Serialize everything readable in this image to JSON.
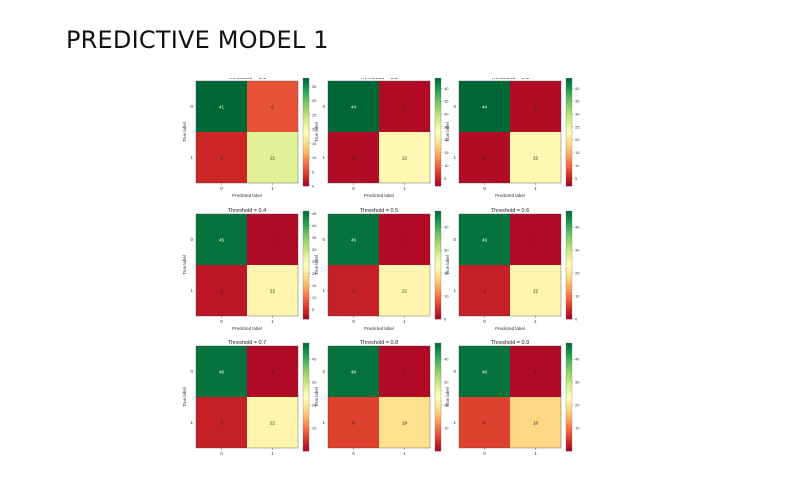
{
  "page": {
    "title": "PREDICTIVE MODEL 1"
  },
  "chart_data": [
    {
      "type": "heatmap",
      "title": "Threshold = 0.1",
      "xlabel": "Predicted label",
      "ylabel": "True label",
      "x_ticks": [
        "0",
        "1"
      ],
      "y_ticks": [
        "0",
        "1"
      ],
      "values": [
        [
          41,
          6
        ],
        [
          3,
          22
        ]
      ],
      "colorbar_ticks": [
        0,
        5,
        10,
        15,
        20,
        25,
        30,
        35
      ],
      "colorbar_range": [
        0,
        38
      ],
      "colormap": "RdYlGn"
    },
    {
      "type": "heatmap",
      "title": "Threshold = 0.2",
      "xlabel": "Predicted label",
      "ylabel": "True label",
      "x_ticks": [
        "0",
        "1"
      ],
      "y_ticks": [
        "0",
        "1"
      ],
      "values": [
        [
          44,
          3
        ],
        [
          3,
          22
        ]
      ],
      "colorbar_ticks": [
        5,
        10,
        15,
        20,
        25,
        30,
        35,
        40
      ],
      "colorbar_range": [
        2,
        44
      ],
      "colormap": "RdYlGn"
    },
    {
      "type": "heatmap",
      "title": "Threshold = 0.3",
      "xlabel": "Predicted label",
      "ylabel": "True label",
      "x_ticks": [
        "0",
        "1"
      ],
      "y_ticks": [
        "0",
        "1"
      ],
      "values": [
        [
          44,
          3
        ],
        [
          3,
          22
        ]
      ],
      "colorbar_ticks": [
        5,
        10,
        15,
        20,
        25,
        30,
        35,
        40
      ],
      "colorbar_range": [
        2,
        44
      ],
      "colormap": "RdYlGn"
    },
    {
      "type": "heatmap",
      "title": "Threshold = 0.4",
      "xlabel": "Predicted label",
      "ylabel": "True label",
      "x_ticks": [
        "0",
        "1"
      ],
      "y_ticks": [
        "0",
        "1"
      ],
      "values": [
        [
          45,
          2
        ],
        [
          3,
          22
        ]
      ],
      "colorbar_ticks": [
        5,
        10,
        15,
        20,
        25,
        30,
        35,
        40,
        45
      ],
      "colorbar_range": [
        1,
        46
      ],
      "colormap": "RdYlGn"
    },
    {
      "type": "heatmap",
      "title": "Threshold = 0.5",
      "xlabel": "Predicted label",
      "ylabel": "True label",
      "x_ticks": [
        "0",
        "1"
      ],
      "y_ticks": [
        "0",
        "1"
      ],
      "values": [
        [
          46,
          1
        ],
        [
          3,
          22
        ]
      ],
      "colorbar_ticks": [
        0,
        10,
        20,
        30,
        40
      ],
      "colorbar_range": [
        0,
        47
      ],
      "colormap": "RdYlGn"
    },
    {
      "type": "heatmap",
      "title": "Threshold = 0.6",
      "xlabel": "Predicted label",
      "ylabel": "True label",
      "x_ticks": [
        "0",
        "1"
      ],
      "y_ticks": [
        "0",
        "1"
      ],
      "values": [
        [
          46,
          1
        ],
        [
          3,
          22
        ]
      ],
      "colorbar_ticks": [
        0,
        10,
        20,
        30,
        40
      ],
      "colorbar_range": [
        0,
        47
      ],
      "colormap": "RdYlGn"
    },
    {
      "type": "heatmap",
      "title": "Threshold = 0.7",
      "xlabel": "",
      "ylabel": "True label",
      "x_ticks": [
        "0",
        "1"
      ],
      "y_ticks": [
        "0",
        "1"
      ],
      "values": [
        [
          46,
          1
        ],
        [
          3,
          22
        ]
      ],
      "colorbar_ticks": [
        10,
        20,
        30,
        40
      ],
      "colorbar_range": [
        0,
        47
      ],
      "colormap": "RdYlGn"
    },
    {
      "type": "heatmap",
      "title": "Threshold = 0.8",
      "xlabel": "",
      "ylabel": "True label",
      "x_ticks": [
        "0",
        "1"
      ],
      "y_ticks": [
        "0",
        "1"
      ],
      "values": [
        [
          46,
          1
        ],
        [
          6,
          19
        ]
      ],
      "colorbar_ticks": [
        10,
        20,
        30,
        40
      ],
      "colorbar_range": [
        0,
        47
      ],
      "colormap": "RdYlGn"
    },
    {
      "type": "heatmap",
      "title": "Threshold = 0.9",
      "xlabel": "",
      "ylabel": "True label",
      "x_ticks": [
        "0",
        "1"
      ],
      "y_ticks": [
        "0",
        "1"
      ],
      "values": [
        [
          46,
          1
        ],
        [
          6,
          18
        ]
      ],
      "colorbar_ticks": [
        10,
        20,
        30,
        40
      ],
      "colorbar_range": [
        0,
        47
      ],
      "colormap": "RdYlGn"
    }
  ]
}
